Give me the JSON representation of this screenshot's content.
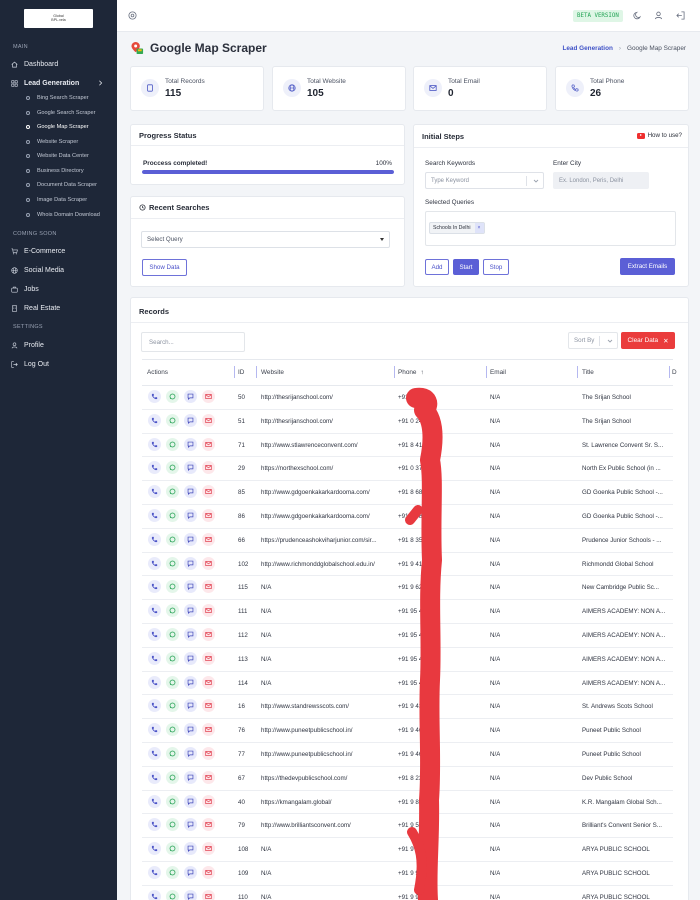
{
  "app": {
    "logo_text_line1": "Global",
    "logo_text_line2": "BPL.vela",
    "beta_label": "BETA VERSION"
  },
  "sidebar": {
    "main_section": "MAIN",
    "dashboard": "Dashboard",
    "lead_generation": "Lead Generation",
    "sub_items": [
      "Bing Search Scraper",
      "Google Search Scraper",
      "Google Map Scraper",
      "Website Scraper",
      "Website Data Center",
      "Business Directory",
      "Document Data Scraper",
      "Image Data Scraper",
      "Whois Domain Download"
    ],
    "coming_soon_section": "COMING SOON",
    "coming_soon_items": [
      "E-Commerce",
      "Social Media",
      "Jobs",
      "Real Estate"
    ],
    "settings_section": "SETTINGS",
    "settings_items": [
      "Profile",
      "Log Out"
    ]
  },
  "page": {
    "title": "Google Map Scraper",
    "breadcrumb_parent": "Lead Generation",
    "breadcrumb_current": "Google Map Scraper"
  },
  "stats": [
    {
      "label": "Total Records",
      "value": "115",
      "icon": "file-icon"
    },
    {
      "label": "Total Website",
      "value": "105",
      "icon": "globe-icon"
    },
    {
      "label": "Total Email",
      "value": "0",
      "icon": "mail-icon"
    },
    {
      "label": "Total Phone",
      "value": "26",
      "icon": "phone-icon"
    }
  ],
  "progress": {
    "title": "Progress Status",
    "label": "Proccess completed!",
    "percent_text": "100%",
    "percent": 100
  },
  "recent_searches": {
    "title": "Recent Searches",
    "select_placeholder": "Select Query",
    "show_data_label": "Show Data"
  },
  "initial_steps": {
    "title": "Initial Steps",
    "how_to": "How to use?",
    "keywords_label": "Search Keywords",
    "keywords_placeholder": "Type Keyword",
    "city_label": "Enter City",
    "city_placeholder": "Ex. London, Peris, Delhi",
    "queries_label": "Selected Queries",
    "query_chip": "Schools In Delhi",
    "add_label": "Add",
    "start_label": "Start",
    "stop_label": "Stop",
    "extract_label": "Extract Emails"
  },
  "records": {
    "title": "Records",
    "search_placeholder": "Search...",
    "sort_placeholder": "Sort By",
    "clear_label": "Clear Data",
    "columns": [
      "Actions",
      "ID",
      "Website",
      "Phone",
      "Email",
      "Title",
      "D"
    ],
    "rows": [
      {
        "id": "50",
        "website": "http://thesrijanschool.com/",
        "phone": "+91 9 2419",
        "email": "N/A",
        "title": "The Srijan School"
      },
      {
        "id": "51",
        "website": "http://thesrijanschool.com/",
        "phone": "+91 0 2419",
        "email": "N/A",
        "title": "The Srijan School"
      },
      {
        "id": "71",
        "website": "http://www.stlawrenceconvent.com/",
        "phone": "+91 8 4100",
        "email": "N/A",
        "title": "St. Lawrence Convent Sr. S..."
      },
      {
        "id": "29",
        "website": "https://northexschool.com/",
        "phone": "+91 0 3777",
        "email": "N/A",
        "title": "North Ex Public School (in ..."
      },
      {
        "id": "85",
        "website": "http://www.gdgoenkakarkardooma.com/",
        "phone": "+91 8 6844",
        "email": "N/A",
        "title": "GD Goenka Public School -..."
      },
      {
        "id": "86",
        "website": "http://www.gdgoenkakarkardooma.com/",
        "phone": "+91 8 6844",
        "email": "N/A",
        "title": "GD Goenka Public School -..."
      },
      {
        "id": "66",
        "website": "https://prudenceashokviharjunior.com/sir...",
        "phone": "+91 8 3575",
        "email": "N/A",
        "title": "Prudence Junior Schools - ..."
      },
      {
        "id": "102",
        "website": "http://www.richmonddglobalschool.edu.in/",
        "phone": "+91 9 4145",
        "email": "N/A",
        "title": "Richmondd Global School"
      },
      {
        "id": "115",
        "website": "N/A",
        "phone": "+91 9 6222",
        "email": "N/A",
        "title": "New Cambridge Public Sc..."
      },
      {
        "id": "111",
        "website": "N/A",
        "phone": "+91 95 4263",
        "email": "N/A",
        "title": "AIMERS ACADEMY: NON A..."
      },
      {
        "id": "112",
        "website": "N/A",
        "phone": "+91 95 4263",
        "email": "N/A",
        "title": "AIMERS ACADEMY: NON A..."
      },
      {
        "id": "113",
        "website": "N/A",
        "phone": "+91 95 4263",
        "email": "N/A",
        "title": "AIMERS ACADEMY: NON A..."
      },
      {
        "id": "114",
        "website": "N/A",
        "phone": "+91 95 4263",
        "email": "N/A",
        "title": "AIMERS ACADEMY: NON A..."
      },
      {
        "id": "16",
        "website": "http://www.standrewsscots.com/",
        "phone": "+91 9 4353",
        "email": "N/A",
        "title": "St. Andrews Scots School"
      },
      {
        "id": "76",
        "website": "http://www.puneetpublicschool.in/",
        "phone": "+91 9 4653",
        "email": "N/A",
        "title": "Puneet Public School"
      },
      {
        "id": "77",
        "website": "http://www.puneetpublicschool.in/",
        "phone": "+91 9 4653",
        "email": "N/A",
        "title": "Puneet Public School"
      },
      {
        "id": "67",
        "website": "https://thedevpublicschool.com/",
        "phone": "+91 8 2364",
        "email": "N/A",
        "title": "Dev Public School"
      },
      {
        "id": "40",
        "website": "https://kmangalam.global/",
        "phone": "+91 9 8181",
        "email": "N/A",
        "title": "K.R. Mangalam Global Sch..."
      },
      {
        "id": "79",
        "website": "http://www.brilliantsconvent.com/",
        "phone": "+91 9 5278",
        "email": "N/A",
        "title": "Brilliant's Convent Senior S..."
      },
      {
        "id": "108",
        "website": "N/A",
        "phone": "+91 9 95111",
        "email": "N/A",
        "title": "ARYA PUBLIC SCHOOL"
      },
      {
        "id": "109",
        "website": "N/A",
        "phone": "+91 9 95111",
        "email": "N/A",
        "title": "ARYA PUBLIC SCHOOL"
      },
      {
        "id": "110",
        "website": "N/A",
        "phone": "+91 9 95111",
        "email": "N/A",
        "title": "ARYA PUBLIC SCHOOL"
      }
    ]
  },
  "colors": {
    "sidebar_bg": "#1e2738",
    "accent": "#5b5fd6",
    "danger": "#ea3c3c",
    "redaction": "#e8393f"
  }
}
